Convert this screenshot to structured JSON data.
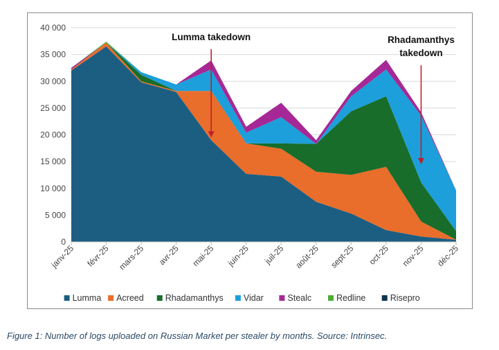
{
  "chart_data": {
    "type": "area",
    "stacked": true,
    "categories": [
      "janv-25",
      "févr-25",
      "mars-25",
      "avr-25",
      "mai-25",
      "juin-25",
      "juil-25",
      "août-25",
      "sept-25",
      "oct-25",
      "nov-25",
      "déc-25"
    ],
    "series": [
      {
        "name": "Lumma",
        "color": "#1b5e82",
        "values": [
          32000,
          36500,
          29800,
          28000,
          19000,
          12700,
          12200,
          7500,
          5300,
          2200,
          1000,
          400
        ]
      },
      {
        "name": "Acreed",
        "color": "#e96d2b",
        "values": [
          200,
          700,
          200,
          200,
          9200,
          5700,
          5200,
          5600,
          7200,
          11800,
          2800,
          0
        ]
      },
      {
        "name": "Rhadamanthys",
        "color": "#186d2a",
        "values": [
          0,
          0,
          1200,
          0,
          0,
          0,
          1000,
          5200,
          11900,
          13200,
          7300,
          1600
        ]
      },
      {
        "name": "Vidar",
        "color": "#1c9fda",
        "values": [
          0,
          0,
          500,
          1200,
          4000,
          2000,
          4900,
          0,
          2800,
          5000,
          12500,
          7600
        ]
      },
      {
        "name": "Stealc",
        "color": "#a62896",
        "values": [
          300,
          0,
          0,
          0,
          1700,
          1100,
          2700,
          700,
          1000,
          1800,
          600,
          0
        ]
      },
      {
        "name": "Redline",
        "color": "#4eae35",
        "values": [
          0,
          200,
          0,
          0,
          0,
          0,
          0,
          0,
          0,
          0,
          0,
          0
        ]
      },
      {
        "name": "Risepro",
        "color": "#0d3550",
        "values": [
          0,
          0,
          0,
          0,
          0,
          0,
          0,
          0,
          0,
          0,
          0,
          0
        ]
      }
    ],
    "y_ticks": [
      "40 000",
      "35 000",
      "30 000",
      "25 000",
      "20 000",
      "15 000",
      "10 000",
      "5 000",
      "0"
    ],
    "ylim": [
      0,
      40000
    ],
    "gridlines": true,
    "legend_position": "bottom",
    "annotations": [
      {
        "text_lines": [
          "Lumma takedown"
        ],
        "category": "mai-25",
        "arrow_from": 36000,
        "arrow_to": 19500,
        "arrow_color": "#c0202a"
      },
      {
        "text_lines": [
          "Rhadamanthys",
          "takedown"
        ],
        "category": "nov-25",
        "arrow_from": 33000,
        "arrow_to": 14500,
        "arrow_color": "#c0202a"
      }
    ]
  },
  "caption": "Figure 1: Number of logs uploaded on Russian Market per stealer by months. Source: Intrinsec."
}
